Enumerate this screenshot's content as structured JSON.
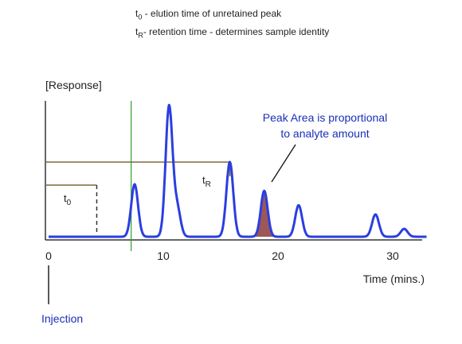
{
  "legend": {
    "t0": {
      "symbol": "t",
      "sub": "0",
      "text": " - elution time of unretained peak"
    },
    "tr": {
      "symbol": "t",
      "sub": "R",
      "text": "- retention time - determines sample identity"
    }
  },
  "y_axis_label": "[Response]",
  "x_axis_label": "Time (mins.)",
  "x_ticks": [
    "0",
    "10",
    "20",
    "30"
  ],
  "marker_t0": {
    "symbol": "t",
    "sub": "0"
  },
  "marker_tr": {
    "symbol": "t",
    "sub": "R"
  },
  "annotation": {
    "line1": "Peak Area is proportional",
    "line2": "to analyte amount"
  },
  "injection_label": "Injection",
  "colors": {
    "trace": "#2b3ee0",
    "injection_text": "#1a2fb8",
    "annotation_text": "#1a2fb8",
    "baseline_marker": "#2e9e2e",
    "bracket_line": "#7a6a3a",
    "peak_fill": "#8b3a3a",
    "axis": "#333333"
  },
  "chart_data": {
    "type": "line",
    "x_unit": "min",
    "xlim": [
      0,
      33
    ],
    "peaks": [
      {
        "time": 7.5,
        "height": 0.4
      },
      {
        "time": 10.5,
        "height": 0.99
      },
      {
        "time": 11.2,
        "height": 0.22
      },
      {
        "time": 15.8,
        "height": 0.57
      },
      {
        "time": 18.8,
        "height": 0.35
      },
      {
        "time": 21.8,
        "height": 0.24
      },
      {
        "time": 28.5,
        "height": 0.17
      },
      {
        "time": 31.0,
        "height": 0.06
      }
    ],
    "t0": 4.2,
    "tR": 15.8,
    "unretained_marker_time": 7.2,
    "shaded_peak_time": 18.8
  }
}
